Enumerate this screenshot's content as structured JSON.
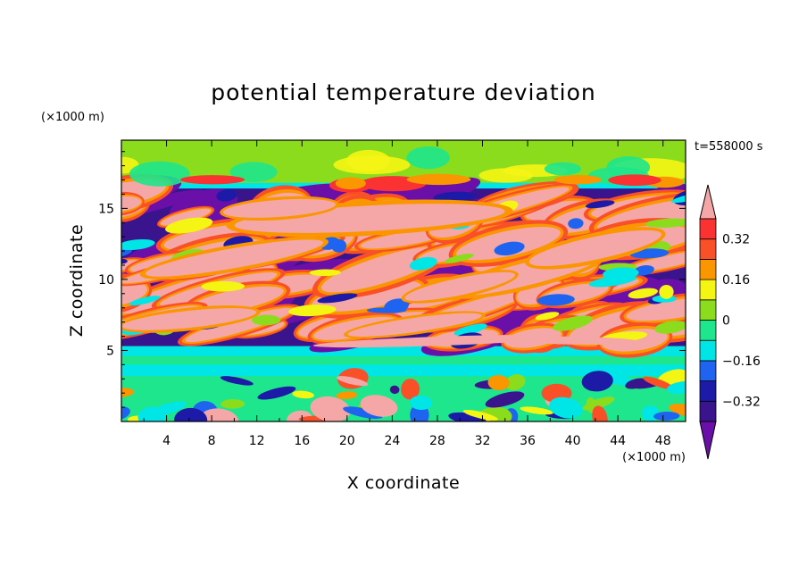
{
  "chart_data": {
    "type": "heatmap",
    "title": "potential temperature deviation",
    "xlabel": "X coordinate",
    "ylabel": "Z coordinate",
    "x_unit": "(×1000 m)",
    "z_unit": "(×1000 m)",
    "time_label": "t=558000 s",
    "xlim": [
      0,
      50
    ],
    "ylim": [
      0,
      19.8
    ],
    "x_ticks": [
      4,
      8,
      12,
      16,
      20,
      24,
      28,
      32,
      36,
      40,
      44,
      48
    ],
    "y_ticks": [
      5,
      10,
      15
    ],
    "colorbar": {
      "levels": [
        -0.4,
        -0.32,
        -0.24,
        -0.16,
        -0.08,
        0,
        0.08,
        0.16,
        0.24,
        0.32,
        0.4
      ],
      "labeled_ticks": [
        -0.32,
        -0.16,
        0,
        0.16,
        0.32
      ],
      "tick_labels": [
        "−0.32",
        "−0.16",
        "0",
        "0.16",
        "0.32"
      ],
      "colors": [
        "#6a0fa8",
        "#3a148c",
        "#1c1aa6",
        "#1e64f0",
        "#00e6e6",
        "#1ee68c",
        "#8cdc1e",
        "#f5f514",
        "#fa9600",
        "#fa5028",
        "#fa3232",
        "#f5a6a6"
      ]
    },
    "bands": [
      {
        "z_bottom": 0,
        "z_top": 3.2,
        "character": "weak mixed perturbations with small warm and cold cells"
      },
      {
        "z_bottom": 3.2,
        "z_top": 5.3,
        "character": "near-zero layer"
      },
      {
        "z_bottom": 5.3,
        "z_top": 16.5,
        "character": "strong alternating warm and cold tilted layers"
      },
      {
        "z_bottom": 16.5,
        "z_top": 19.8,
        "character": "near-zero layer"
      }
    ]
  }
}
